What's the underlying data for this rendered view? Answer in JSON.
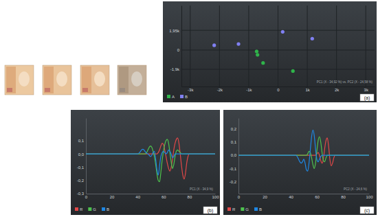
{
  "chart_data": [
    {
      "type": "scatter",
      "title": "(a)",
      "annotation": "PC1 (X - 34,92 %) vs. PC2 (X - 24,58 %)",
      "xlim": [
        -3300,
        3300
      ],
      "ylim": [
        -3600,
        4400
      ],
      "xticks": [
        {
          "value": -3000,
          "label": "-3k"
        },
        {
          "value": -2000,
          "label": "-2k"
        },
        {
          "value": -1000,
          "label": "-1k"
        },
        0,
        {
          "value": 1000,
          "label": "1k"
        },
        {
          "value": 2000,
          "label": "2k"
        },
        {
          "value": 3000,
          "label": "3k"
        }
      ],
      "yticks": [
        {
          "value": -1900,
          "label": "-1,9k"
        },
        0,
        {
          "value": 1950,
          "label": "1,95k"
        }
      ],
      "grid": true,
      "legend": "lower left",
      "marker": "circle",
      "series": [
        {
          "name": "A",
          "color": "#2fb34a",
          "x": [
            -730,
            -700,
            -510,
            510
          ],
          "values": [
            -130,
            -470,
            -1270,
            -2070
          ]
        },
        {
          "name": "B",
          "color": "#8080f2",
          "x": [
            -2180,
            -1350,
            160,
            1170
          ],
          "values": [
            470,
            600,
            1800,
            1130
          ]
        }
      ]
    },
    {
      "type": "line",
      "title": "(b)",
      "annotation": "PC1 (X - 34,9 %)",
      "xlim": [
        0,
        100
      ],
      "ylim": [
        -0.3,
        0.27
      ],
      "xticks": [
        0,
        20,
        40,
        60,
        80,
        100
      ],
      "yticks": [
        {
          "value": -0.3,
          "label": "-0,3"
        },
        {
          "value": -0.2,
          "label": "-0,2"
        },
        {
          "value": -0.1,
          "label": "-0,1"
        },
        {
          "value": 0,
          "label": "0,0"
        },
        {
          "value": 0.1,
          "label": "0,1"
        }
      ],
      "grid": false,
      "legend": "lower left",
      "x": [
        0,
        10,
        20,
        30,
        40,
        41,
        42,
        43,
        44,
        45,
        46,
        47,
        48,
        49,
        50,
        51,
        52,
        53,
        54,
        55,
        56,
        57,
        58,
        59,
        60,
        61,
        62,
        63,
        64,
        65,
        66,
        67,
        68,
        69,
        70,
        71,
        72,
        73,
        74,
        75,
        76,
        77,
        78,
        79,
        80,
        81,
        82,
        83,
        84,
        85,
        90,
        100
      ],
      "series": [
        {
          "name": "R",
          "color": "#e04848",
          "values": [
            0,
            0,
            0,
            0,
            0,
            0,
            0,
            0,
            0,
            0,
            0,
            0,
            0,
            0,
            0,
            0,
            0,
            0,
            0,
            0,
            0.01,
            0.03,
            0.06,
            0.08,
            0.07,
            0.03,
            -0.02,
            -0.07,
            -0.11,
            -0.13,
            -0.1,
            -0.04,
            0.03,
            0.08,
            0.11,
            0.12,
            0.08,
            0,
            -0.09,
            -0.16,
            -0.19,
            -0.15,
            -0.07,
            -0.02,
            0,
            0,
            0,
            0,
            0,
            0,
            0,
            0
          ]
        },
        {
          "name": "G",
          "color": "#4ec24e",
          "values": [
            0,
            0,
            0,
            0,
            0,
            0,
            0,
            0,
            0,
            0,
            0,
            0.01,
            0.03,
            0.05,
            0.06,
            0.05,
            0.02,
            -0.02,
            -0.08,
            -0.15,
            -0.2,
            -0.21,
            -0.14,
            -0.05,
            0.02,
            0.07,
            0.1,
            0.11,
            0.08,
            0.01,
            -0.06,
            -0.11,
            -0.08,
            -0.02,
            0.02,
            0.03,
            0.02,
            0.01,
            0,
            0,
            0,
            0,
            0,
            0,
            0,
            0,
            0,
            0,
            0,
            0,
            0,
            0
          ]
        },
        {
          "name": "B",
          "color": "#1e88e5",
          "values": [
            0,
            0,
            0,
            0,
            0,
            0.005,
            0.015,
            0.03,
            0.035,
            0.03,
            0.015,
            0.005,
            0,
            -0.01,
            -0.02,
            -0.01,
            0.01,
            0.02,
            -0.04,
            -0.12,
            -0.16,
            -0.09,
            -0.02,
            0.01,
            0.02,
            0.01,
            0,
            0.01,
            0.03,
            0.02,
            0,
            -0.03,
            -0.02,
            0,
            0,
            0,
            0,
            0,
            0,
            0,
            0,
            0,
            0,
            0,
            0,
            0,
            0,
            0,
            0,
            0,
            0,
            0
          ]
        }
      ]
    },
    {
      "type": "line",
      "title": "(c)",
      "annotation": "PC2 (X - 24,6 %)",
      "xlim": [
        0,
        100
      ],
      "ylim": [
        -0.29,
        0.28
      ],
      "xticks": [
        0,
        20,
        40,
        60,
        80,
        100
      ],
      "yticks": [
        {
          "value": -0.2,
          "label": "-0,2"
        },
        {
          "value": -0.1,
          "label": "-0,1"
        },
        {
          "value": 0,
          "label": "0,0"
        },
        {
          "value": 0.1,
          "label": "0,1"
        },
        {
          "value": 0.2,
          "label": "0,2"
        }
      ],
      "grid": false,
      "legend": "lower left",
      "x": [
        0,
        10,
        20,
        30,
        40,
        41,
        42,
        43,
        44,
        45,
        46,
        47,
        48,
        49,
        50,
        51,
        52,
        53,
        54,
        55,
        56,
        57,
        58,
        59,
        60,
        61,
        62,
        63,
        64,
        65,
        66,
        67,
        68,
        69,
        70,
        71,
        72,
        73,
        74,
        75,
        76,
        77,
        78,
        79,
        80,
        81,
        82,
        83,
        84,
        85,
        90,
        100
      ],
      "series": [
        {
          "name": "R",
          "color": "#e04848",
          "values": [
            0,
            0,
            0,
            0,
            0,
            0,
            0,
            0,
            0,
            0,
            0,
            0,
            0,
            0,
            0,
            0,
            0,
            0,
            0,
            0,
            0,
            0,
            0,
            0,
            0.01,
            0.02,
            0,
            -0.04,
            -0.06,
            -0.03,
            0.05,
            0.11,
            0.13,
            0.07,
            -0.03,
            -0.08,
            -0.06,
            -0.02,
            0,
            0,
            0,
            0,
            0,
            0,
            0,
            0,
            0,
            0,
            0,
            0,
            0,
            0
          ]
        },
        {
          "name": "G",
          "color": "#4ec24e",
          "values": [
            0,
            0,
            0,
            0,
            0,
            0,
            0,
            0,
            0,
            0,
            0,
            0,
            0,
            0,
            0,
            0,
            0,
            0.01,
            0.03,
            0.02,
            -0.02,
            -0.07,
            -0.1,
            -0.06,
            0.03,
            0.11,
            0.14,
            0.1,
            0.02,
            -0.04,
            -0.05,
            -0.02,
            0,
            0,
            0,
            0,
            0,
            0,
            0,
            0,
            0,
            0,
            0,
            0,
            0,
            0,
            0,
            0,
            0,
            0,
            0,
            0
          ]
        },
        {
          "name": "B",
          "color": "#1e88e5",
          "values": [
            0,
            0,
            0,
            0,
            0,
            0,
            0,
            0,
            0,
            -0.01,
            -0.03,
            -0.05,
            -0.06,
            -0.05,
            -0.03,
            -0.06,
            -0.11,
            -0.12,
            -0.06,
            0.04,
            0.14,
            0.19,
            0.15,
            0.05,
            -0.03,
            -0.05,
            -0.03,
            -0.01,
            0,
            0,
            0,
            0,
            0,
            0,
            0,
            0,
            0,
            0,
            0,
            0,
            0,
            0,
            0,
            0,
            0,
            0,
            0,
            0,
            0,
            0,
            0,
            0
          ]
        }
      ]
    }
  ]
}
